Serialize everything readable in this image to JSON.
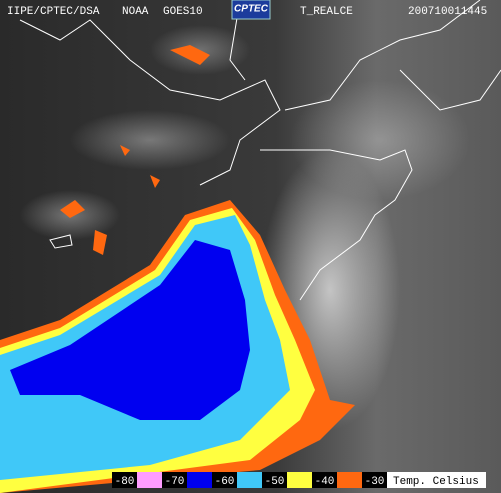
{
  "header": {
    "agency": "IIPE/CPTEC/DSA",
    "satellite_operator": "NOAA",
    "satellite": "GOES10",
    "logo": "CPTEC",
    "product": "T_REALCE",
    "timestamp": "200710011445"
  },
  "legend": {
    "labels": [
      -80,
      -70,
      -60,
      -50,
      -40,
      -30
    ],
    "colors": [
      "#ff9cff",
      "#0000f0",
      "#40c8f8",
      "#ffff40",
      "#ff6810"
    ],
    "unit": "Temp. Celsius"
  }
}
